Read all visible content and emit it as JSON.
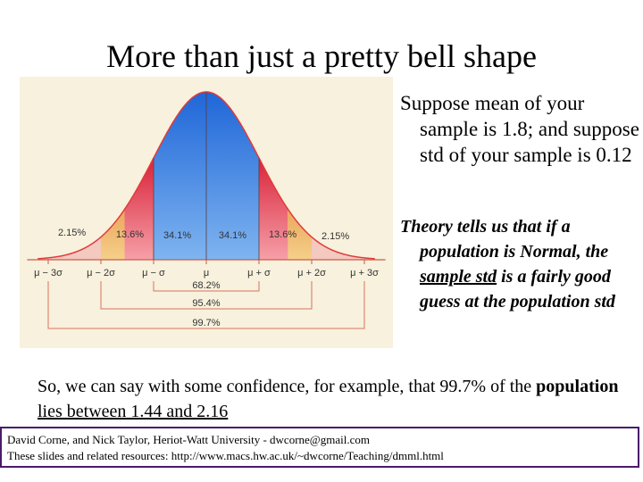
{
  "slide": {
    "title": "More than just a pretty bell shape",
    "right_paragraph_1": "Suppose mean of your sample is 1.8; and suppose std of your sample is 0.12",
    "right_paragraph_2": {
      "text_1": "Theory tells us that if a population is Normal, the ",
      "underlined": "sample std",
      "text_2": " is a fairly good guess at the population std"
    },
    "bottom_paragraph": {
      "text_1": "So, we can say with some confidence, for example, that 99.7% of the ",
      "bold": "population",
      "text_2": " ",
      "underlined": "lies between 1.44 and 2.16"
    },
    "footer": {
      "line1": "David Corne, and Nick Taylor,  Heriot-Watt University  -  dwcorne@gmail.com",
      "line2": "These slides and related resources:   http://www.macs.hw.ac.uk/~dwcorne/Teaching/dmml.html"
    }
  },
  "figure": {
    "region_percents": [
      "2.15%",
      "13.6%",
      "34.1%",
      "34.1%",
      "13.6%",
      "2.15%"
    ],
    "axis_labels": [
      "μ − 3σ",
      "μ − 2σ",
      "μ − σ",
      "μ",
      "μ + σ",
      "μ + 2σ",
      "μ + 3σ"
    ],
    "range_labels": [
      "68.2%",
      "95.4%",
      "99.7%"
    ],
    "colors": {
      "center": "#2f7fe3",
      "one_sigma": "#e8485a",
      "two_sigma": "#e9a24a",
      "tail": "#e23a3a",
      "background": "#f7f1dd",
      "bracket": "#d9735f"
    }
  }
}
